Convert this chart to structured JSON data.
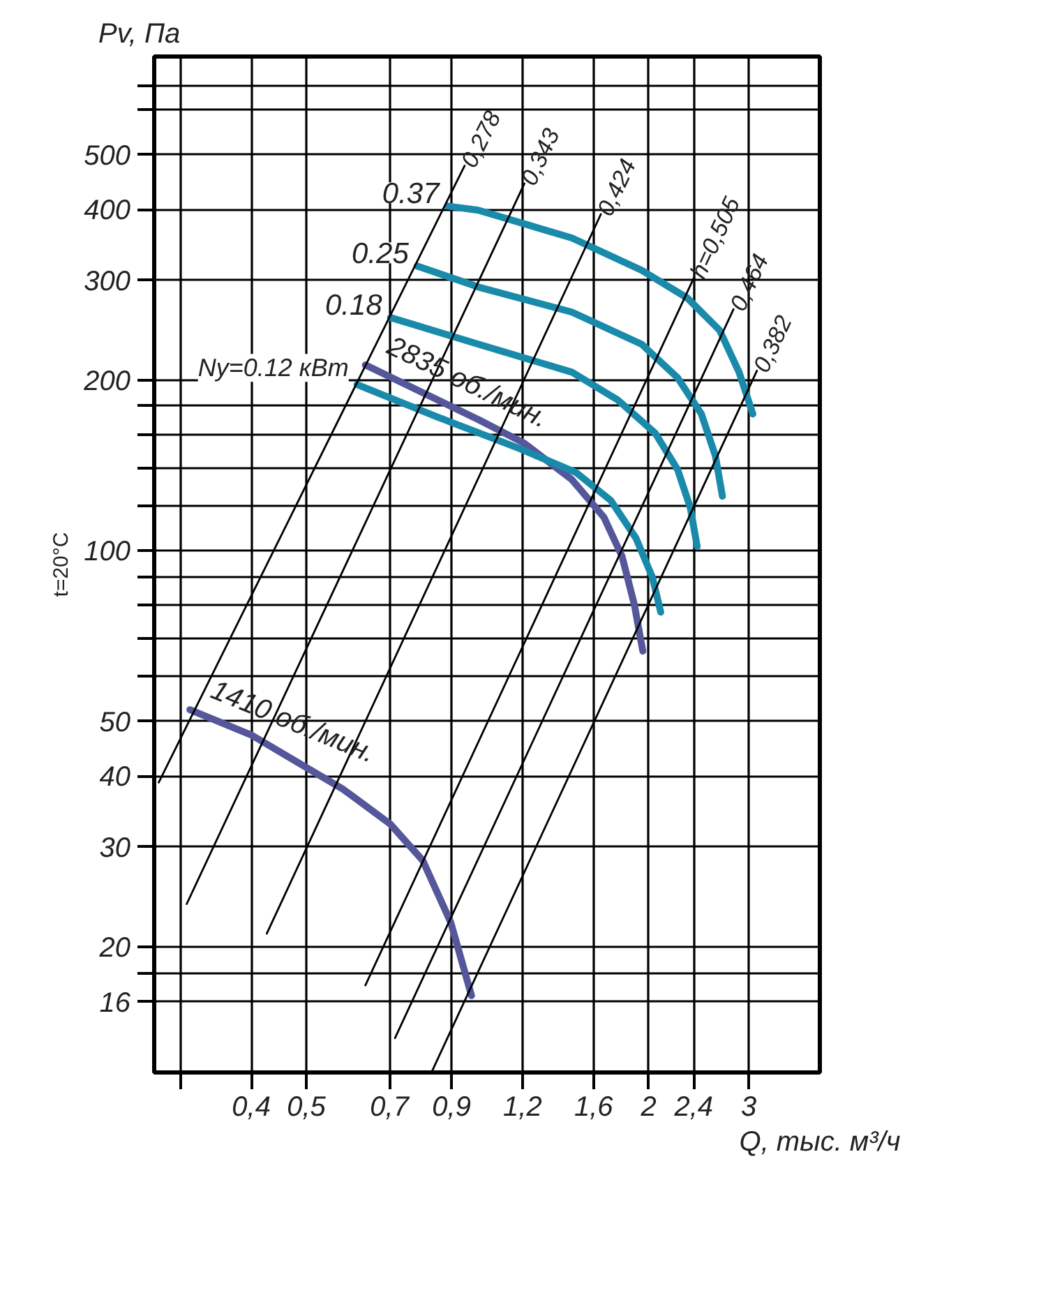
{
  "chart_data": {
    "type": "line",
    "ylabel": "Pv, Па",
    "xlabel": "Q, тыс. м³/ч",
    "log": "xy",
    "grid": true,
    "line_style": "solid",
    "xlim": [
      0.27,
      4.0
    ],
    "ylim": [
      12,
      745
    ],
    "xticks": [
      {
        "value": 0.3,
        "label": null
      },
      {
        "value": 0.4,
        "label": "0,4"
      },
      {
        "value": 0.5,
        "label": "0,5"
      },
      {
        "value": 0.7,
        "label": "0,7"
      },
      {
        "value": 0.9,
        "label": "0,9"
      },
      {
        "value": 1.2,
        "label": "1,2"
      },
      {
        "value": 1.6,
        "label": "1,6"
      },
      2,
      {
        "value": 2.4,
        "label": "2,4"
      },
      3
    ],
    "yticks": [
      16,
      {
        "value": 18,
        "label": null
      },
      20,
      30,
      40,
      50,
      {
        "value": 60,
        "label": null
      },
      {
        "value": 70,
        "label": null
      },
      {
        "value": 80,
        "label": null
      },
      {
        "value": 90,
        "label": null
      },
      100,
      {
        "value": 120,
        "label": null
      },
      {
        "value": 140,
        "label": null
      },
      {
        "value": 160,
        "label": null
      },
      {
        "value": 180,
        "label": null
      },
      200,
      300,
      400,
      500,
      {
        "value": 600,
        "label": null
      },
      {
        "value": 660,
        "label": null
      }
    ],
    "annotations": [
      "t=20°C",
      "1410 об./мин.",
      "2835 об./мин."
    ],
    "series": [
      {
        "color": "#55579a",
        "x": [
          0.312,
          0.4,
          0.581,
          0.703,
          0.801,
          0.897,
          0.976
        ],
        "values": [
          52.4,
          47.3,
          37.9,
          32.9,
          28.4,
          22.1,
          16.4
        ]
      },
      {
        "color": "#55579a",
        "x": [
          0.635,
          1.003,
          1.208,
          1.465,
          1.668,
          1.795,
          1.888,
          1.953
        ],
        "values": [
          212.7,
          170.4,
          154.8,
          133.5,
          114.6,
          97.8,
          80.2,
          66.5
        ]
      },
      {
        "name": "Ny=0.12 кВт",
        "color": "#1a8aab",
        "x": [
          0.614,
          0.847,
          1.188,
          1.49,
          1.715,
          1.9,
          2.03,
          2.1
        ],
        "values": [
          196.4,
          172.4,
          151.3,
          137.4,
          122.7,
          105.2,
          89.8,
          77.9
        ]
      },
      {
        "name": "0.18",
        "color": "#1a8aab",
        "x": [
          0.703,
          1.003,
          1.465,
          1.765,
          2.055,
          2.249,
          2.367,
          2.434
        ],
        "values": [
          257.9,
          231.5,
          206.6,
          184.5,
          161.1,
          139,
          119.2,
          101.7
        ]
      },
      {
        "name": "0.25",
        "color": "#1a8aab",
        "x": [
          0.783,
          1.003,
          1.465,
          1.943,
          2.249,
          2.476,
          2.62,
          2.696
        ],
        "values": [
          318,
          292,
          263.7,
          231.5,
          201.9,
          174.3,
          147.1,
          124.8
        ]
      },
      {
        "name": "0.37",
        "color": "#1a8aab",
        "x": [
          0.886,
          1.003,
          1.465,
          1.943,
          2.339,
          2.665,
          2.884,
          3.05
        ],
        "values": [
          405.7,
          399,
          356.4,
          312.7,
          279.2,
          245,
          206.6,
          174.3
        ]
      },
      {
        "name": "0,278",
        "color": "#000000",
        "x": [
          0.275,
          0.949
        ],
        "values": [
          39.0,
          478
        ]
      },
      {
        "name": "0,343",
        "color": "#000000",
        "x": [
          0.308,
          1.209
        ],
        "values": [
          23.8,
          444.5
        ]
      },
      {
        "name": "0,424",
        "color": "#000000",
        "x": [
          0.426,
          1.648
        ],
        "values": [
          21.1,
          392.5
        ]
      },
      {
        "name": "h=0,505",
        "color": "#000000",
        "x": [
          0.635,
          2.405
        ],
        "values": [
          17.1,
          304
        ]
      },
      {
        "name": "0,464",
        "color": "#000000",
        "x": [
          0.716,
          2.82
        ],
        "values": [
          13.8,
          266.8
        ]
      },
      {
        "name": "0,382",
        "color": "#000000",
        "x": [
          0.833,
          3.1
        ],
        "values": [
          12.1,
          207.8
        ]
      }
    ]
  }
}
